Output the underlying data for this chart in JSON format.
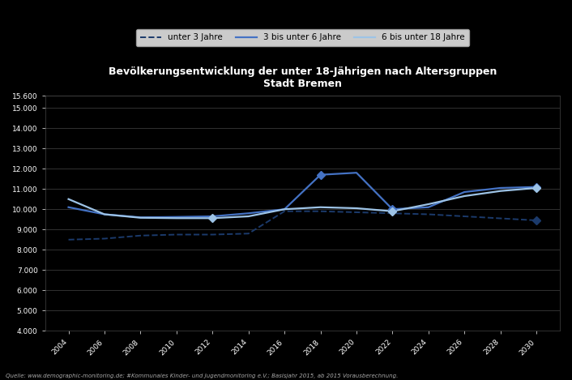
{
  "title": "Bevölkerungsentwicklung der unter 18-Jährigen nach Altersgruppen\nStadt Bremen",
  "source_text": "Quelle: www.demographic-monitoring.de; #Kommunales Kinder- und Jugendmonitoring e.V.; Basisjahr 2015, ab 2015 Vorausberechnung.",
  "x_years": [
    2004,
    2006,
    2008,
    2010,
    2012,
    2014,
    2016,
    2018,
    2020,
    2022,
    2024,
    2026,
    2028,
    2030
  ],
  "series": [
    {
      "label": "unter 3 Jahre",
      "color": "#1B3A6B",
      "linestyle": "dashed",
      "linewidth": 1.4,
      "marker": "D",
      "marker_indices": [
        13
      ],
      "markersize": 5,
      "values": [
        8500,
        8550,
        8700,
        8750,
        8750,
        8800,
        9900,
        9900,
        9850,
        9800,
        9750,
        9650,
        9550,
        9450
      ]
    },
    {
      "label": "3 bis unter 6 Jahre",
      "color": "#4472C4",
      "linestyle": "solid",
      "linewidth": 1.6,
      "marker": "D",
      "marker_indices": [
        7,
        9,
        13
      ],
      "markersize": 5,
      "values": [
        10100,
        9750,
        9600,
        9620,
        9650,
        9800,
        10000,
        11700,
        11800,
        10000,
        10100,
        10850,
        11050,
        11100
      ]
    },
    {
      "label": "6 bis unter 18 Jahre",
      "color": "#9DC3E6",
      "linestyle": "solid",
      "linewidth": 1.6,
      "marker": "D",
      "marker_indices": [
        4,
        9,
        13
      ],
      "markersize": 5,
      "values": [
        10500,
        9750,
        9580,
        9560,
        9560,
        9650,
        10000,
        10100,
        10050,
        9900,
        10250,
        10650,
        10900,
        11050
      ]
    }
  ],
  "ylim": [
    4000,
    15600
  ],
  "ytick_step": 100,
  "yticks_major": [
    4000,
    5000,
    6000,
    7000,
    8000,
    9000,
    10000,
    11000,
    12000,
    13000,
    14000,
    15000,
    15600
  ],
  "background_color": "#000000",
  "plot_bg_color": "#000000",
  "text_color": "#FFFFFF",
  "grid_color": "#444444",
  "title_fontsize": 9,
  "axis_fontsize": 6.5,
  "legend_fontsize": 7.5
}
